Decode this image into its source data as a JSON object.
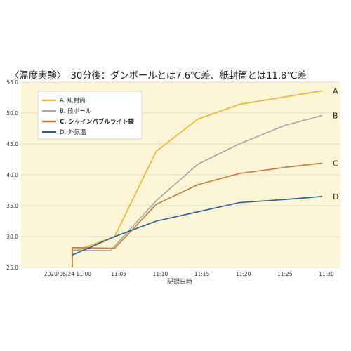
{
  "title": "〈温度実験〉　30分後：ダンボールとは7.6℃差、紙封筒とは11.8℃差",
  "chart_data": {
    "type": "line",
    "xlabel": "記録日時",
    "ylabel": "",
    "ylim": [
      25.0,
      55.0
    ],
    "yticks": [
      "25.0",
      "30.0",
      "35.0",
      "40.0",
      "45.0",
      "50.0",
      "55.0"
    ],
    "xrange": [
      -1,
      30
    ],
    "xticks": [
      {
        "t": 0,
        "label": "2020/06/24 11:00"
      },
      {
        "t": 5,
        "label": "11:05"
      },
      {
        "t": 10,
        "label": "11:10"
      },
      {
        "t": 15,
        "label": "11:15"
      },
      {
        "t": 20,
        "label": "11:20"
      },
      {
        "t": 25,
        "label": "11:25"
      },
      {
        "t": 30,
        "label": "11:30"
      }
    ],
    "grid": "horizontal",
    "legend_position": "top-left",
    "series": [
      {
        "name": "A. 紙封筒",
        "end_label": "A",
        "color": "#EBB233",
        "highlight": false,
        "points": [
          [
            -0.6,
            25.0
          ],
          [
            -0.6,
            27.8
          ],
          [
            0,
            27.8
          ],
          [
            4.5,
            30.0
          ],
          [
            9.5,
            43.8
          ],
          [
            14.5,
            49.0
          ],
          [
            19.5,
            51.4
          ],
          [
            29.5,
            53.6
          ]
        ]
      },
      {
        "name": "B. 段ボール",
        "end_label": "B",
        "color": "#A5A5A5",
        "highlight": false,
        "points": [
          [
            -0.6,
            25.0
          ],
          [
            -0.6,
            27.8
          ],
          [
            0,
            27.8
          ],
          [
            4,
            27.7
          ],
          [
            9.5,
            35.8
          ],
          [
            14.5,
            41.7
          ],
          [
            19.5,
            45.0
          ],
          [
            25,
            48.0
          ],
          [
            29.5,
            49.6
          ]
        ]
      },
      {
        "name": "C. シャインパブルライト袋",
        "end_label": "C",
        "color": "#C8783A",
        "highlight": true,
        "points": [
          [
            -0.6,
            25.0
          ],
          [
            -0.6,
            28.2
          ],
          [
            0,
            28.2
          ],
          [
            4.5,
            28.1
          ],
          [
            9.5,
            35.2
          ],
          [
            14.5,
            38.4
          ],
          [
            19.5,
            40.2
          ],
          [
            25,
            41.2
          ],
          [
            29.5,
            41.9
          ]
        ]
      },
      {
        "name": "D. 外気温",
        "end_label": "D",
        "color": "#2A5F94",
        "highlight": false,
        "points": [
          [
            -0.6,
            27.0
          ],
          [
            4.5,
            30.0
          ],
          [
            9.5,
            32.5
          ],
          [
            14.5,
            34.0
          ],
          [
            19.5,
            35.5
          ],
          [
            25,
            36.0
          ],
          [
            29.5,
            36.5
          ]
        ]
      }
    ]
  }
}
